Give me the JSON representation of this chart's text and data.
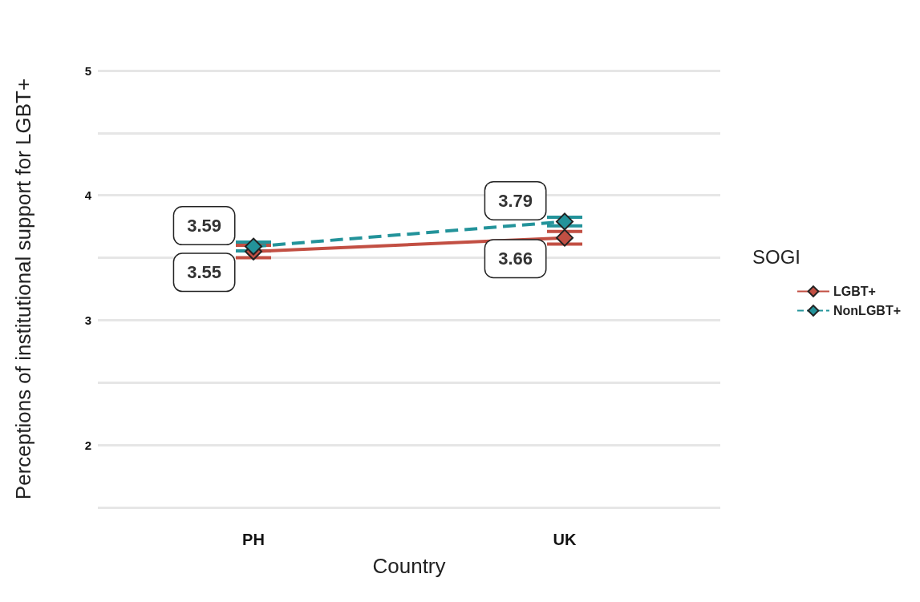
{
  "chart_data": {
    "type": "line",
    "xlabel": "Country",
    "ylabel": "Perceptions of institutional support for LGBT+",
    "legend_title": "SOGI",
    "categories": [
      "PH",
      "UK"
    ],
    "series": [
      {
        "name": "LGBT+",
        "color": "#c24f43",
        "values": [
          3.55,
          3.66
        ],
        "errors": [
          0.05,
          0.05
        ],
        "value_labels": [
          "3.55",
          "3.66"
        ],
        "line_style": "solid"
      },
      {
        "name": "NonLGBT+",
        "color": "#23939a",
        "values": [
          3.59,
          3.79
        ],
        "errors": [
          0.035,
          0.035
        ],
        "value_labels": [
          "3.59",
          "3.79"
        ],
        "line_style": "dashed"
      }
    ],
    "ylim": [
      1.5,
      5
    ],
    "yticks": [
      {
        "value": 1.5,
        "label": null
      },
      2,
      {
        "value": 2.5,
        "label": null
      },
      3,
      {
        "value": 3.5,
        "label": null
      },
      4,
      {
        "value": 4.5,
        "label": null
      },
      5
    ],
    "grid": true,
    "legend": "right",
    "marker": "diamond"
  }
}
